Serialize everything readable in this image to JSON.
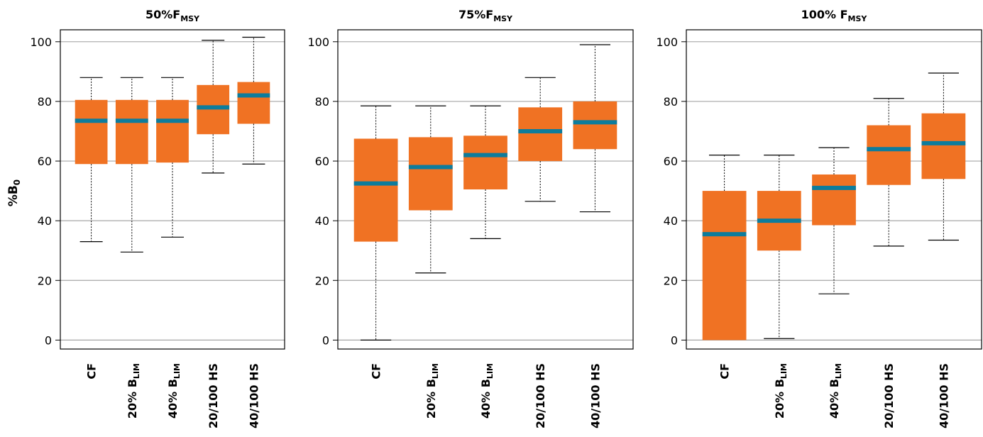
{
  "ylabel": "%B",
  "ylabel_sub": "0",
  "chart_data": [
    {
      "type": "box",
      "title": "50%F",
      "title_sub": "MSY",
      "ylim": [
        -3,
        104
      ],
      "yticks": [
        0,
        20,
        40,
        60,
        80,
        100
      ],
      "grid": true,
      "categories": [
        {
          "main": "CF",
          "sub": ""
        },
        {
          "main": "20% B",
          "sub": "LIM"
        },
        {
          "main": "40% B",
          "sub": "LIM"
        },
        {
          "main": "20/100 HS",
          "sub": ""
        },
        {
          "main": "40/100 HS",
          "sub": ""
        }
      ],
      "boxes": [
        {
          "min": 33,
          "q1": 59,
          "median": 73.5,
          "q3": 80.5,
          "max": 88
        },
        {
          "min": 29.5,
          "q1": 59,
          "median": 73.5,
          "q3": 80.5,
          "max": 88
        },
        {
          "min": 34.5,
          "q1": 59.5,
          "median": 73.5,
          "q3": 80.5,
          "max": 88
        },
        {
          "min": 56,
          "q1": 69,
          "median": 78,
          "q3": 85.5,
          "max": 100.5
        },
        {
          "min": 59,
          "q1": 72.5,
          "median": 82,
          "q3": 86.5,
          "max": 101.5
        }
      ]
    },
    {
      "type": "box",
      "title": "75%F",
      "title_sub": "MSY",
      "ylim": [
        -3,
        104
      ],
      "yticks": [
        0,
        20,
        40,
        60,
        80,
        100
      ],
      "grid": true,
      "categories": [
        {
          "main": "CF",
          "sub": ""
        },
        {
          "main": "20% B",
          "sub": "LIM"
        },
        {
          "main": "40% B",
          "sub": "LIM"
        },
        {
          "main": "20/100 HS",
          "sub": ""
        },
        {
          "main": "40/100 HS",
          "sub": ""
        }
      ],
      "boxes": [
        {
          "min": 0,
          "q1": 33,
          "median": 52.5,
          "q3": 67.5,
          "max": 78.5
        },
        {
          "min": 22.5,
          "q1": 43.5,
          "median": 58,
          "q3": 68,
          "max": 78.5
        },
        {
          "min": 34,
          "q1": 50.5,
          "median": 62,
          "q3": 68.5,
          "max": 78.5
        },
        {
          "min": 46.5,
          "q1": 60,
          "median": 70,
          "q3": 78,
          "max": 88
        },
        {
          "min": 43,
          "q1": 64,
          "median": 73,
          "q3": 80,
          "max": 99
        }
      ]
    },
    {
      "type": "box",
      "title": "100% F",
      "title_sub": "MSY",
      "ylim": [
        -3,
        104
      ],
      "yticks": [
        0,
        20,
        40,
        60,
        80,
        100
      ],
      "grid": true,
      "categories": [
        {
          "main": "CF",
          "sub": ""
        },
        {
          "main": "20% B",
          "sub": "LIM"
        },
        {
          "main": "40% B",
          "sub": "LIM"
        },
        {
          "main": "20/100 HS",
          "sub": ""
        },
        {
          "main": "40/100 HS",
          "sub": ""
        }
      ],
      "boxes": [
        {
          "min": 0,
          "q1": 0,
          "median": 35.5,
          "q3": 50,
          "max": 62
        },
        {
          "min": 0.5,
          "q1": 30,
          "median": 40,
          "q3": 50,
          "max": 62
        },
        {
          "min": 15.5,
          "q1": 38.5,
          "median": 51,
          "q3": 55.5,
          "max": 64.5
        },
        {
          "min": 31.5,
          "q1": 52,
          "median": 64,
          "q3": 72,
          "max": 81
        },
        {
          "min": 33.5,
          "q1": 54,
          "median": 66,
          "q3": 76,
          "max": 89.5
        }
      ]
    }
  ],
  "colors": {
    "box": "#f07223",
    "median": "#0d7c9c",
    "grid": "#a6a6a6",
    "frame": "#000000",
    "whisker": "#000000",
    "text": "#000000"
  }
}
